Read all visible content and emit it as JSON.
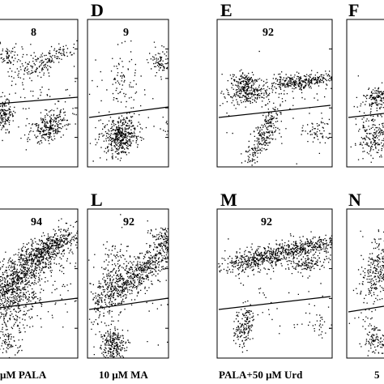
{
  "panels": {
    "C": {
      "label": "",
      "value": "8"
    },
    "D": {
      "label": "D",
      "value": "9"
    },
    "E": {
      "label": "E",
      "value": "92"
    },
    "F": {
      "label": "F",
      "value": ""
    },
    "K": {
      "label": "",
      "value": "94"
    },
    "L": {
      "label": "L",
      "value": "92"
    },
    "M": {
      "label": "M",
      "value": "92"
    },
    "N": {
      "label": "N",
      "value": ""
    }
  },
  "captions": {
    "col1": "μM PALA",
    "col2": "10 μM MA",
    "col3": "PALA+50 μM Urd",
    "col4": "5"
  }
}
